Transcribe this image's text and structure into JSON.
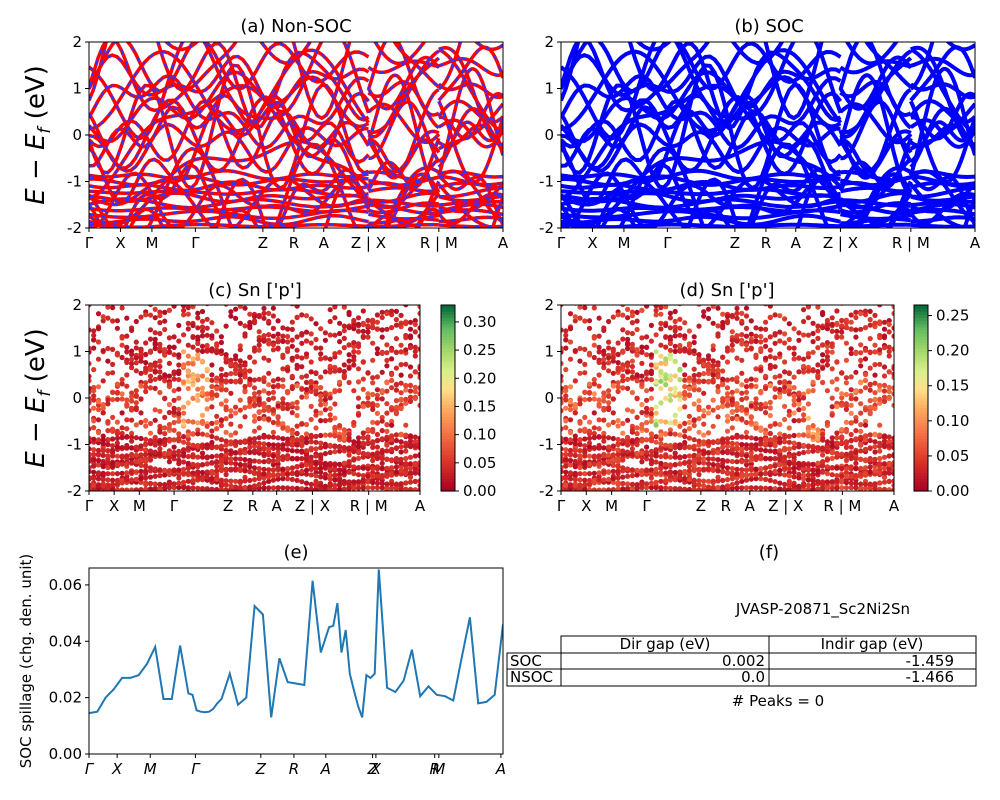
{
  "panels": {
    "a": {
      "title": "(a) Non-SOC"
    },
    "b": {
      "title": "(b) SOC"
    },
    "c": {
      "title": "(c)  Sn ['p']"
    },
    "d": {
      "title": "(d) Sn ['p']"
    },
    "e": {
      "title": "(e)"
    },
    "f": {
      "title": "(f)"
    }
  },
  "band_ylabel": "E − E",
  "band_ylabel_sub": "f",
  "band_ylabel_unit": " (eV)",
  "colorbar_c": {
    "ticks": [
      "0.00",
      "0.05",
      "0.10",
      "0.15",
      "0.20",
      "0.25",
      "0.30"
    ],
    "max": 0.33
  },
  "colorbar_d": {
    "ticks": [
      "0.00",
      "0.05",
      "0.10",
      "0.15",
      "0.20",
      "0.25"
    ],
    "max": 0.265
  },
  "kpath_labels_top": [
    "Γ",
    "X",
    "M",
    "Γ",
    "Z",
    "R",
    "A",
    "Z | X",
    "R | M",
    "A"
  ],
  "kpath_labels_e": [
    "Γ",
    "X",
    "M",
    "Γ",
    "Z",
    "R",
    "A",
    "Z",
    "X",
    "R",
    "M",
    "A"
  ],
  "colors": {
    "nonsoc_line": "#ff0000",
    "nonsoc_dash": "#3333ff",
    "soc_line": "#0000ff",
    "spillage": "#1f77b4"
  },
  "chart_data": [
    {
      "type": "line",
      "title": "(a) Non-SOC",
      "ylim": [
        -2,
        2
      ],
      "yticks": [
        "-2",
        "-1",
        "0",
        "1",
        "2"
      ],
      "xticklabels": [
        "Γ",
        "X",
        "M",
        "Γ",
        "Z",
        "R",
        "A",
        "Z | X",
        "R | M",
        "A"
      ]
    },
    {
      "type": "line",
      "title": "(b) SOC",
      "ylim": [
        -2,
        2
      ],
      "yticks": [
        "-2",
        "-1",
        "0",
        "1",
        "2"
      ],
      "xticklabels": [
        "Γ",
        "X",
        "M",
        "Γ",
        "Z",
        "R",
        "A",
        "Z | X",
        "R | M",
        "A"
      ]
    },
    {
      "type": "scatter",
      "title": "(c)  Sn ['p']",
      "ylim": [
        -2,
        2
      ],
      "colorbar_range": [
        0,
        0.33
      ]
    },
    {
      "type": "scatter",
      "title": "(d) Sn ['p']",
      "ylim": [
        -2,
        2
      ],
      "colorbar_range": [
        0,
        0.265
      ]
    },
    {
      "type": "line",
      "title": "(e)",
      "ylabel": "SOC spillage (chg. den. unit)",
      "ylim": [
        0,
        0.066
      ],
      "yticks": [
        "0.00",
        "0.02",
        "0.04",
        "0.06"
      ],
      "x": [
        0,
        2,
        4,
        6,
        8,
        10,
        12,
        14,
        16,
        18,
        20,
        22,
        24,
        25,
        26,
        27,
        28,
        29,
        30,
        31,
        32,
        34,
        36,
        38,
        40,
        42,
        44,
        46,
        48,
        50,
        52,
        54,
        56,
        58,
        59,
        60,
        61,
        62,
        63,
        64,
        65,
        66,
        67,
        68,
        69,
        70,
        72,
        74,
        76,
        78,
        80,
        82,
        84,
        86,
        88,
        90,
        92,
        94,
        96,
        98,
        100
      ],
      "y": [
        0.0145,
        0.015,
        0.02,
        0.023,
        0.027,
        0.027,
        0.028,
        0.032,
        0.038,
        0.0195,
        0.0195,
        0.0385,
        0.0215,
        0.021,
        0.0155,
        0.015,
        0.0148,
        0.015,
        0.016,
        0.018,
        0.0195,
        0.0285,
        0.0175,
        0.02,
        0.0525,
        0.0495,
        0.013,
        0.034,
        0.0255,
        0.025,
        0.0245,
        0.0615,
        0.036,
        0.045,
        0.0455,
        0.0535,
        0.036,
        0.044,
        0.0285,
        0.0225,
        0.017,
        0.013,
        0.028,
        0.027,
        0.0285,
        0.0655,
        0.0235,
        0.022,
        0.026,
        0.037,
        0.0205,
        0.024,
        0.021,
        0.0205,
        0.019,
        0.034,
        0.0485,
        0.018,
        0.0185,
        0.021,
        0.046
      ]
    }
  ],
  "table": {
    "material": "JVASP-20871_Sc2Ni2Sn",
    "headers": [
      "Dir gap (eV)",
      "Indir gap (eV)"
    ],
    "rows": [
      {
        "label": "SOC",
        "dir": "0.002",
        "indir": "-1.459"
      },
      {
        "label": "NSOC",
        "dir": "0.0",
        "indir": "-1.466"
      }
    ],
    "peaks": "# Peaks = 0"
  }
}
